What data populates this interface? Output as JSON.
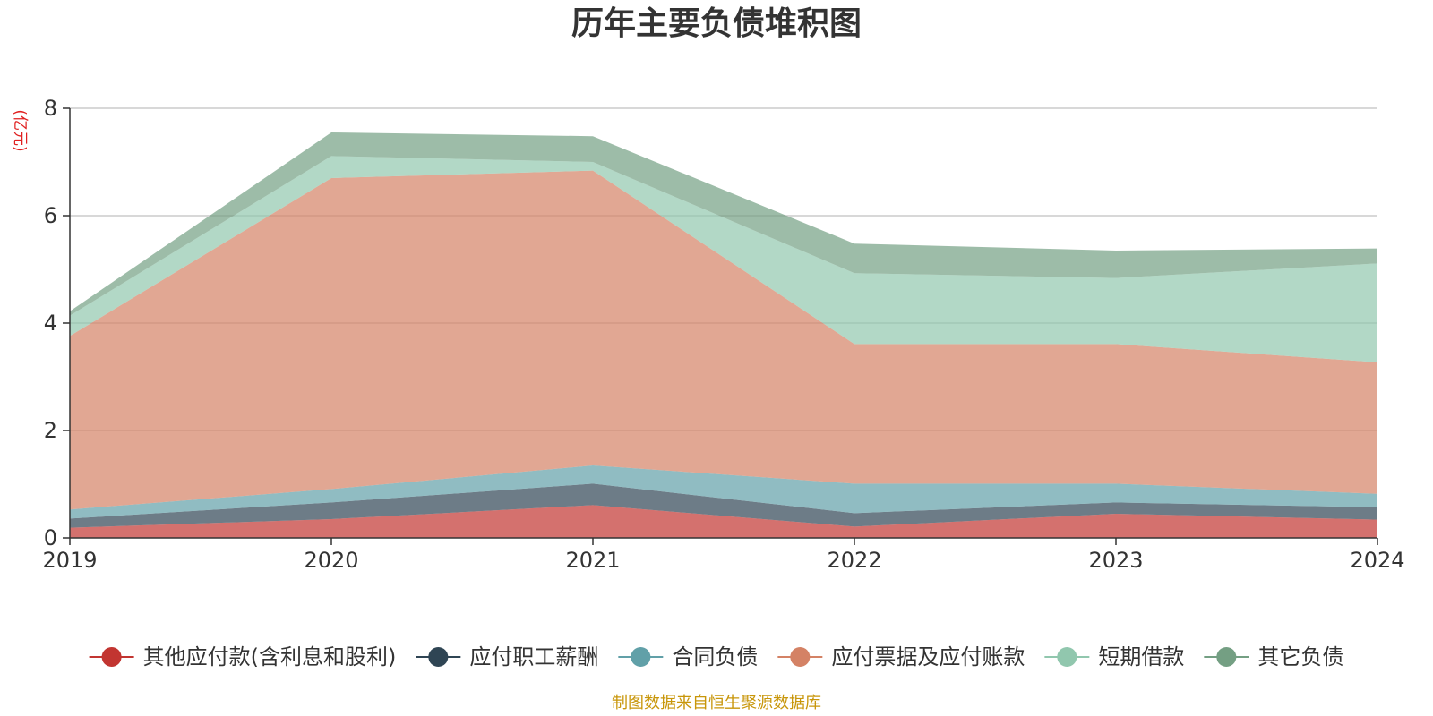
{
  "chart_data": {
    "type": "area",
    "stacked": true,
    "title": "历年主要负债堆积图",
    "unit_label": "(亿元)",
    "x": [
      "2019",
      "2020",
      "2021",
      "2022",
      "2023",
      "2024"
    ],
    "ylim": [
      0,
      8
    ],
    "yticks": [
      "0",
      "2",
      "4",
      "6",
      "8"
    ],
    "grid": true,
    "legend_position": "bottom",
    "series": [
      {
        "name": "其他应付款(含利息和股利)",
        "color": "#c23531",
        "values": [
          0.19,
          0.35,
          0.61,
          0.21,
          0.45,
          0.34
        ]
      },
      {
        "name": "应付职工薪酬",
        "color": "#2f4554",
        "values": [
          0.17,
          0.31,
          0.4,
          0.25,
          0.21,
          0.23
        ]
      },
      {
        "name": "合同负债",
        "color": "#61a0a8",
        "values": [
          0.17,
          0.25,
          0.34,
          0.55,
          0.35,
          0.25
        ]
      },
      {
        "name": "应付票据及应付账款",
        "color": "#d48265",
        "values": [
          3.23,
          5.79,
          5.49,
          2.6,
          2.6,
          2.45
        ]
      },
      {
        "name": "短期借款",
        "color": "#91c7ae",
        "values": [
          0.38,
          0.41,
          0.16,
          1.32,
          1.23,
          1.84
        ]
      },
      {
        "name": "其它负债",
        "color": "#749f83",
        "values": [
          0.08,
          0.44,
          0.48,
          0.55,
          0.51,
          0.28
        ]
      }
    ],
    "source": "制图数据来自恒生聚源数据库"
  }
}
